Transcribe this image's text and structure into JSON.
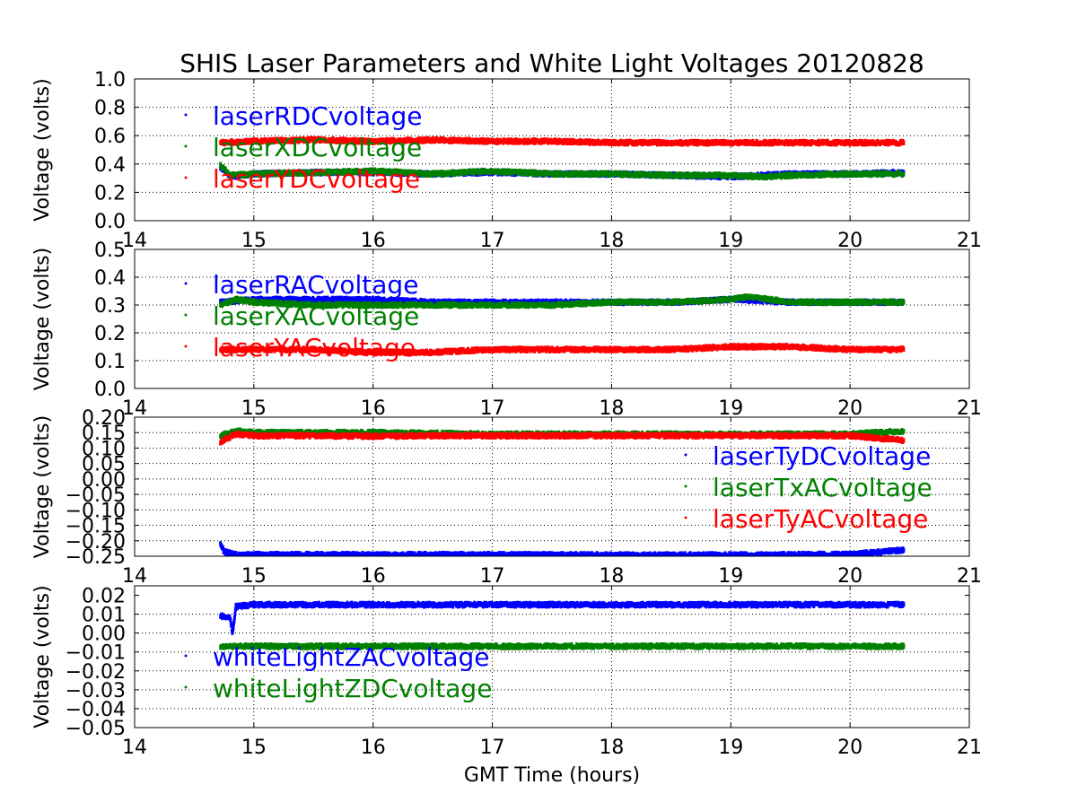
{
  "chart_data": {
    "title": "SHIS Laser Parameters and White Light Voltages 20120828",
    "xlabel": "GMT Time (hours)",
    "xlim": [
      14,
      21
    ],
    "xticks": [
      14,
      15,
      16,
      17,
      18,
      19,
      20,
      21
    ],
    "grid": true,
    "subplots": [
      {
        "type": "scatter",
        "ylabel": "Voltage (volts)",
        "ylim": [
          0.0,
          1.0
        ],
        "yticks": [
          0.0,
          0.2,
          0.4,
          0.6,
          0.8,
          1.0
        ],
        "ytick_labels": [
          "0.0",
          "0.2",
          "0.4",
          "0.6",
          "0.8",
          "1.0"
        ],
        "legend_position": "upper-left",
        "series": [
          {
            "name": "laserRDCvoltage",
            "color": "#0000ff",
            "points": [
              [
                14.72,
                0.38
              ],
              [
                14.8,
                0.31
              ],
              [
                15.0,
                0.33
              ],
              [
                15.5,
                0.34
              ],
              [
                16.0,
                0.34
              ],
              [
                16.5,
                0.33
              ],
              [
                17.0,
                0.34
              ],
              [
                17.5,
                0.33
              ],
              [
                18.0,
                0.33
              ],
              [
                18.5,
                0.32
              ],
              [
                19.0,
                0.31
              ],
              [
                19.25,
                0.32
              ],
              [
                19.5,
                0.33
              ],
              [
                20.0,
                0.33
              ],
              [
                20.45,
                0.34
              ]
            ]
          },
          {
            "name": "laserXDCvoltage",
            "color": "#008000",
            "points": [
              [
                14.72,
                0.39
              ],
              [
                14.8,
                0.32
              ],
              [
                15.0,
                0.33
              ],
              [
                15.5,
                0.34
              ],
              [
                16.0,
                0.35
              ],
              [
                16.5,
                0.33
              ],
              [
                17.0,
                0.35
              ],
              [
                17.5,
                0.33
              ],
              [
                18.0,
                0.33
              ],
              [
                18.5,
                0.32
              ],
              [
                19.0,
                0.32
              ],
              [
                19.25,
                0.31
              ],
              [
                19.5,
                0.32
              ],
              [
                20.0,
                0.33
              ],
              [
                20.45,
                0.33
              ]
            ]
          },
          {
            "name": "laserYDCvoltage",
            "color": "#ff0000",
            "points": [
              [
                14.72,
                0.55
              ],
              [
                15.0,
                0.56
              ],
              [
                15.5,
                0.57
              ],
              [
                16.0,
                0.56
              ],
              [
                16.5,
                0.57
              ],
              [
                17.0,
                0.56
              ],
              [
                17.5,
                0.56
              ],
              [
                18.0,
                0.55
              ],
              [
                18.5,
                0.55
              ],
              [
                19.0,
                0.55
              ],
              [
                19.5,
                0.55
              ],
              [
                20.0,
                0.55
              ],
              [
                20.45,
                0.55
              ]
            ]
          }
        ]
      },
      {
        "type": "scatter",
        "ylabel": "Voltage (volts)",
        "ylim": [
          0.0,
          0.5
        ],
        "yticks": [
          0.0,
          0.1,
          0.2,
          0.3,
          0.4,
          0.5
        ],
        "ytick_labels": [
          "0.0",
          "0.1",
          "0.2",
          "0.3",
          "0.4",
          "0.5"
        ],
        "legend_position": "upper-left",
        "series": [
          {
            "name": "laserRACvoltage",
            "color": "#0000ff",
            "points": [
              [
                14.72,
                0.31
              ],
              [
                15.0,
                0.32
              ],
              [
                15.5,
                0.32
              ],
              [
                16.0,
                0.32
              ],
              [
                16.5,
                0.31
              ],
              [
                17.0,
                0.31
              ],
              [
                17.5,
                0.31
              ],
              [
                18.0,
                0.31
              ],
              [
                18.5,
                0.31
              ],
              [
                19.0,
                0.32
              ],
              [
                19.5,
                0.31
              ],
              [
                20.0,
                0.31
              ],
              [
                20.45,
                0.31
              ]
            ]
          },
          {
            "name": "laserXACvoltage",
            "color": "#008000",
            "points": [
              [
                14.72,
                0.3
              ],
              [
                14.85,
                0.32
              ],
              [
                15.0,
                0.31
              ],
              [
                15.5,
                0.3
              ],
              [
                16.0,
                0.3
              ],
              [
                16.5,
                0.3
              ],
              [
                17.0,
                0.3
              ],
              [
                17.5,
                0.3
              ],
              [
                18.0,
                0.31
              ],
              [
                18.5,
                0.31
              ],
              [
                19.0,
                0.32
              ],
              [
                19.15,
                0.33
              ],
              [
                19.5,
                0.31
              ],
              [
                20.0,
                0.31
              ],
              [
                20.45,
                0.31
              ]
            ]
          },
          {
            "name": "laserYACvoltage",
            "color": "#ff0000",
            "points": [
              [
                14.72,
                0.14
              ],
              [
                15.0,
                0.14
              ],
              [
                15.5,
                0.14
              ],
              [
                16.0,
                0.13
              ],
              [
                16.5,
                0.13
              ],
              [
                17.0,
                0.14
              ],
              [
                17.5,
                0.14
              ],
              [
                18.0,
                0.14
              ],
              [
                18.5,
                0.14
              ],
              [
                19.0,
                0.15
              ],
              [
                19.5,
                0.15
              ],
              [
                20.0,
                0.14
              ],
              [
                20.45,
                0.14
              ]
            ]
          }
        ]
      },
      {
        "type": "scatter",
        "ylabel": "Voltage (volts)",
        "ylim": [
          -0.25,
          0.2
        ],
        "yticks": [
          -0.25,
          -0.2,
          -0.15,
          -0.1,
          -0.05,
          0.0,
          0.05,
          0.1,
          0.15,
          0.2
        ],
        "ytick_labels": [
          "−0.25",
          "−0.20",
          "−0.15",
          "−0.10",
          "−0.05",
          "0.00",
          "0.05",
          "0.10",
          "0.15",
          "0.20"
        ],
        "legend_position": "right",
        "series": [
          {
            "name": "laserTyDCvoltage",
            "color": "#0000ff",
            "points": [
              [
                14.72,
                -0.21
              ],
              [
                14.75,
                -0.235
              ],
              [
                14.85,
                -0.245
              ],
              [
                15.0,
                -0.245
              ],
              [
                16.0,
                -0.245
              ],
              [
                17.0,
                -0.245
              ],
              [
                18.0,
                -0.246
              ],
              [
                19.0,
                -0.246
              ],
              [
                20.0,
                -0.244
              ],
              [
                20.3,
                -0.235
              ],
              [
                20.45,
                -0.23
              ]
            ]
          },
          {
            "name": "laserTxACvoltage",
            "color": "#008000",
            "points": [
              [
                14.72,
                0.14
              ],
              [
                14.85,
                0.155
              ],
              [
                15.0,
                0.15
              ],
              [
                15.5,
                0.15
              ],
              [
                16.0,
                0.15
              ],
              [
                16.5,
                0.148
              ],
              [
                17.0,
                0.145
              ],
              [
                17.5,
                0.145
              ],
              [
                18.0,
                0.145
              ],
              [
                18.5,
                0.145
              ],
              [
                19.0,
                0.145
              ],
              [
                19.5,
                0.145
              ],
              [
                20.0,
                0.145
              ],
              [
                20.45,
                0.155
              ]
            ]
          },
          {
            "name": "laserTyACvoltage",
            "color": "#ff0000",
            "points": [
              [
                14.72,
                0.12
              ],
              [
                14.85,
                0.145
              ],
              [
                15.0,
                0.14
              ],
              [
                15.5,
                0.14
              ],
              [
                16.0,
                0.138
              ],
              [
                16.5,
                0.14
              ],
              [
                17.0,
                0.14
              ],
              [
                17.5,
                0.14
              ],
              [
                18.0,
                0.14
              ],
              [
                18.5,
                0.14
              ],
              [
                19.0,
                0.14
              ],
              [
                19.5,
                0.14
              ],
              [
                20.0,
                0.14
              ],
              [
                20.45,
                0.125
              ]
            ]
          }
        ]
      },
      {
        "type": "scatter",
        "ylabel": "Voltage (volts)",
        "ylim": [
          -0.05,
          0.025
        ],
        "yticks": [
          -0.05,
          -0.04,
          -0.03,
          -0.02,
          -0.01,
          0.0,
          0.01,
          0.02
        ],
        "ytick_labels": [
          "−0.05",
          "−0.04",
          "−0.03",
          "−0.02",
          "−0.01",
          "0.00",
          "0.01",
          "0.02"
        ],
        "legend_position": "lower-left",
        "series": [
          {
            "name": "whiteLightZACvoltage",
            "color": "#0000ff",
            "points": [
              [
                14.72,
                0.009
              ],
              [
                14.8,
                0.008
              ],
              [
                14.82,
                0.0
              ],
              [
                14.85,
                0.014
              ],
              [
                15.0,
                0.015
              ],
              [
                15.5,
                0.015
              ],
              [
                16.0,
                0.015
              ],
              [
                16.5,
                0.015
              ],
              [
                17.0,
                0.015
              ],
              [
                17.5,
                0.015
              ],
              [
                18.0,
                0.015
              ],
              [
                18.5,
                0.015
              ],
              [
                19.0,
                0.015
              ],
              [
                19.5,
                0.015
              ],
              [
                20.0,
                0.015
              ],
              [
                20.45,
                0.015
              ]
            ]
          },
          {
            "name": "whiteLightZDCvoltage",
            "color": "#008000",
            "points": [
              [
                14.72,
                -0.007
              ],
              [
                15.0,
                -0.007
              ],
              [
                16.0,
                -0.007
              ],
              [
                17.0,
                -0.007
              ],
              [
                18.0,
                -0.007
              ],
              [
                19.0,
                -0.007
              ],
              [
                20.0,
                -0.007
              ],
              [
                20.45,
                -0.007
              ]
            ]
          }
        ]
      }
    ]
  }
}
